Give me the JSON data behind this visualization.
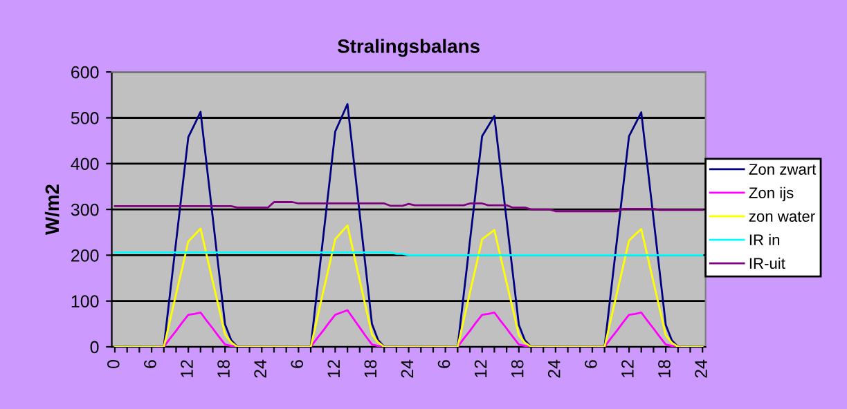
{
  "chart_data": {
    "type": "line",
    "title": "Stralingsbalans",
    "ylabel": "W/m2",
    "categories": [
      "0",
      null,
      null,
      null,
      null,
      null,
      "6",
      null,
      null,
      null,
      null,
      null,
      "12",
      null,
      null,
      null,
      null,
      null,
      "18",
      null,
      null,
      null,
      null,
      null,
      "24",
      null,
      null,
      null,
      null,
      null,
      "6",
      null,
      null,
      null,
      null,
      null,
      "12",
      null,
      null,
      null,
      null,
      null,
      "18",
      null,
      null,
      null,
      null,
      null,
      "24",
      null,
      null,
      null,
      null,
      null,
      "6",
      null,
      null,
      null,
      null,
      null,
      "12",
      null,
      null,
      null,
      null,
      null,
      "18",
      null,
      null,
      null,
      null,
      null,
      "24",
      null,
      null,
      null,
      null,
      null,
      "6",
      null,
      null,
      null,
      null,
      null,
      "12",
      null,
      null,
      null,
      null,
      null,
      "18",
      null,
      null,
      null,
      null,
      null,
      "24"
    ],
    "series": [
      {
        "name": "Zon zwart",
        "color": "#000080",
        "values": [
          0,
          0,
          0,
          0,
          0,
          0,
          0,
          0,
          0,
          115,
          229,
          344,
          458,
          485,
          513,
          397,
          281,
          165,
          49,
          15,
          0,
          0,
          0,
          0,
          0,
          0,
          0,
          0,
          0,
          0,
          0,
          0,
          0,
          118,
          235,
          352,
          470,
          500,
          530,
          410,
          290,
          170,
          50,
          15,
          0,
          0,
          0,
          0,
          0,
          0,
          0,
          0,
          0,
          0,
          0,
          0,
          0,
          115,
          230,
          345,
          460,
          482,
          504,
          390,
          276,
          162,
          48,
          14,
          0,
          0,
          0,
          0,
          0,
          0,
          0,
          0,
          0,
          0,
          0,
          0,
          0,
          115,
          230,
          345,
          460,
          486,
          512,
          396,
          280,
          164,
          48,
          14,
          0,
          0,
          0,
          0,
          0
        ]
      },
      {
        "name": "Zon ijs",
        "color": "#ff00ff",
        "values": [
          null,
          null,
          null,
          null,
          null,
          null,
          null,
          0,
          0,
          18,
          35,
          53,
          70,
          72,
          75,
          57,
          40,
          22,
          5,
          2,
          0,
          0,
          0,
          0,
          0,
          0,
          0,
          0,
          0,
          0,
          0,
          0,
          0,
          18,
          35,
          53,
          70,
          75,
          80,
          61,
          42,
          23,
          5,
          2,
          0,
          0,
          0,
          0,
          0,
          0,
          0,
          0,
          0,
          0,
          0,
          0,
          0,
          18,
          35,
          53,
          70,
          72,
          75,
          57,
          40,
          22,
          5,
          2,
          0,
          0,
          0,
          0,
          0,
          0,
          0,
          0,
          0,
          0,
          0,
          0,
          0,
          18,
          35,
          53,
          70,
          72,
          75,
          57,
          40,
          22,
          5,
          2,
          0,
          0,
          null,
          null,
          null
        ]
      },
      {
        "name": "zon water",
        "color": "#ffff00",
        "values": [
          0,
          0,
          0,
          0,
          0,
          0,
          0,
          0,
          0,
          57,
          115,
          172,
          230,
          244,
          258,
          200,
          142,
          85,
          27,
          10,
          0,
          0,
          0,
          0,
          0,
          0,
          0,
          0,
          0,
          0,
          0,
          0,
          0,
          59,
          118,
          176,
          235,
          250,
          265,
          205,
          145,
          86,
          27,
          10,
          0,
          0,
          0,
          0,
          0,
          0,
          0,
          0,
          0,
          0,
          0,
          0,
          0,
          59,
          118,
          176,
          235,
          245,
          255,
          197,
          140,
          83,
          25,
          9,
          0,
          0,
          0,
          0,
          0,
          0,
          0,
          0,
          0,
          0,
          0,
          0,
          0,
          58,
          116,
          174,
          232,
          245,
          257,
          199,
          141,
          83,
          25,
          9,
          0,
          0,
          0,
          0,
          0
        ]
      },
      {
        "name": "IR in",
        "color": "#00ffff",
        "values": [
          206,
          206,
          206,
          206,
          206,
          206,
          206,
          206,
          206,
          206,
          206,
          206,
          206,
          206,
          206,
          206,
          206,
          206,
          206,
          206,
          206,
          206,
          206,
          206,
          206,
          206,
          206,
          206,
          206,
          206,
          206,
          206,
          206,
          206,
          206,
          206,
          206,
          206,
          206,
          206,
          206,
          206,
          206,
          206,
          206,
          206,
          203,
          203,
          200,
          200,
          200,
          200,
          200,
          200,
          200,
          200,
          200,
          200,
          200,
          200,
          200,
          200,
          200,
          200,
          200,
          200,
          200,
          200,
          200,
          200,
          200,
          200,
          200,
          200,
          200,
          200,
          200,
          200,
          200,
          200,
          200,
          200,
          200,
          200,
          200,
          200,
          200,
          200,
          200,
          200,
          200,
          200,
          200,
          200,
          200,
          200,
          200
        ]
      },
      {
        "name": "IR-uit",
        "color": "#800080",
        "values": [
          307,
          307,
          307,
          307,
          307,
          307,
          307,
          307,
          307,
          307,
          307,
          307,
          307,
          307,
          307,
          307,
          307,
          307,
          307,
          307,
          304,
          304,
          304,
          304,
          304,
          304,
          316,
          316,
          316,
          316,
          313,
          313,
          313,
          313,
          313,
          313,
          313,
          313,
          313,
          313,
          313,
          313,
          313,
          313,
          313,
          308,
          308,
          308,
          312,
          309,
          309,
          309,
          309,
          309,
          309,
          309,
          309,
          309,
          313,
          313,
          313,
          309,
          309,
          309,
          309,
          304,
          304,
          304,
          300,
          300,
          300,
          300,
          296,
          296,
          296,
          296,
          296,
          296,
          296,
          296,
          296,
          296,
          296,
          301,
          301,
          301,
          301,
          301,
          301,
          299,
          299,
          299,
          299,
          299,
          299,
          299,
          299
        ]
      }
    ],
    "ylim": [
      0,
      600
    ],
    "yticks": [
      0,
      100,
      200,
      300,
      400,
      500,
      600
    ],
    "grid": "y",
    "legend": "right",
    "marker": "none",
    "line_style": "solid"
  }
}
